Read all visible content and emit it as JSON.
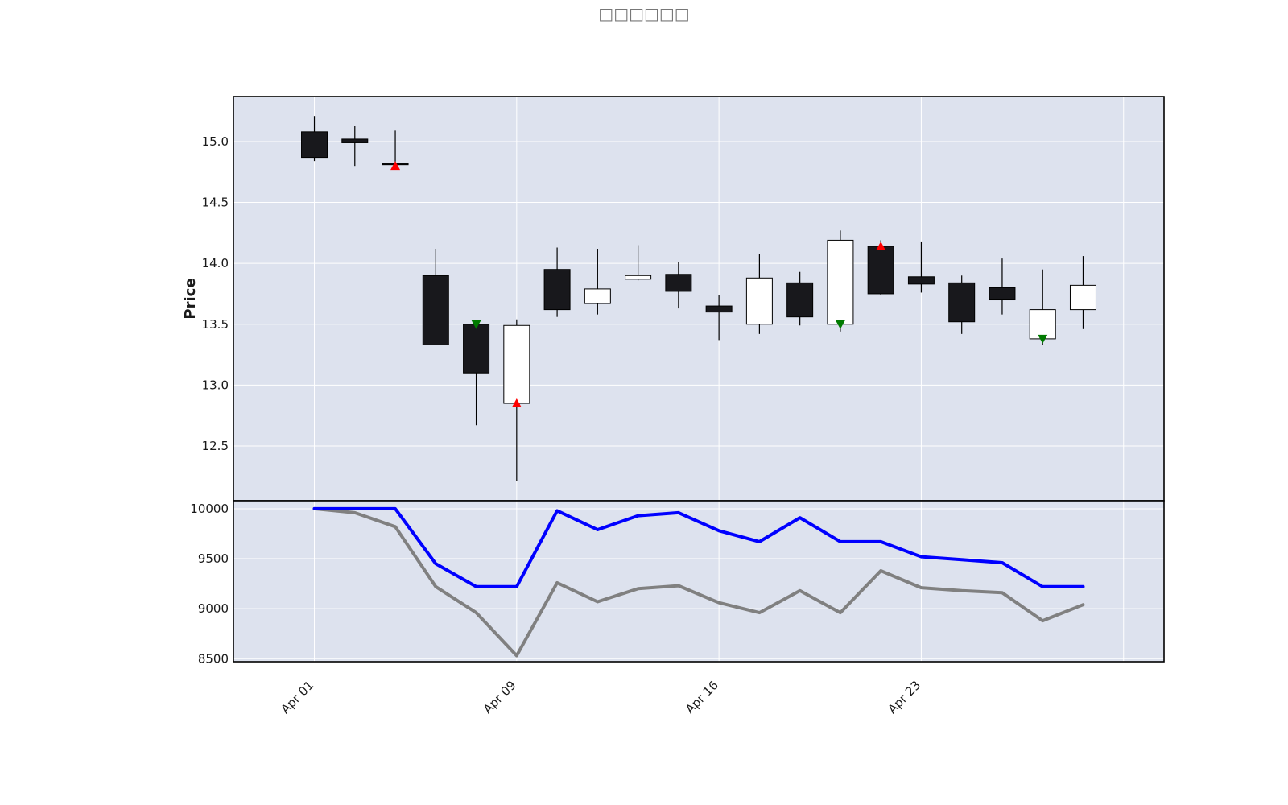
{
  "chart_data": {
    "type": "candlestick",
    "title": "□□□□□□",
    "colors": {
      "panel_bg": "#dde2ee",
      "grid": "#ffffff",
      "up_fill": "#ffffff",
      "down_fill": "#18181c",
      "candle_edge": "#000000",
      "buy_marker": "#ff0000",
      "sell_marker": "#007a00",
      "strategy_line": "#0000ff",
      "benchmark_line": "#808080"
    },
    "x_tick_labels": [
      {
        "index": 0,
        "label": "Apr 01"
      },
      {
        "index": 5,
        "label": "Apr 09"
      },
      {
        "index": 10,
        "label": "Apr 16"
      },
      {
        "index": 15,
        "label": "Apr 23"
      }
    ],
    "x_range": [
      -2,
      21
    ],
    "price_panel": {
      "ylabel": "Price",
      "ylim": [
        12.05,
        15.37
      ],
      "yticks": [
        "12.5",
        "13.0",
        "13.5",
        "14.0",
        "14.5",
        "15.0"
      ],
      "ytick_values": [
        12.5,
        13.0,
        13.5,
        14.0,
        14.5,
        15.0
      ],
      "candles": [
        {
          "o": 15.08,
          "h": 15.21,
          "l": 14.84,
          "c": 14.87
        },
        {
          "o": 15.02,
          "h": 15.13,
          "l": 14.8,
          "c": 14.99
        },
        {
          "o": 14.82,
          "h": 15.09,
          "l": 14.8,
          "c": 14.81
        },
        {
          "o": 13.9,
          "h": 14.12,
          "l": 13.33,
          "c": 13.33
        },
        {
          "o": 13.5,
          "h": 13.52,
          "l": 12.67,
          "c": 13.1
        },
        {
          "o": 12.85,
          "h": 13.54,
          "l": 12.21,
          "c": 13.49
        },
        {
          "o": 13.95,
          "h": 14.13,
          "l": 13.56,
          "c": 13.62
        },
        {
          "o": 13.67,
          "h": 14.12,
          "l": 13.58,
          "c": 13.79
        },
        {
          "o": 13.87,
          "h": 14.15,
          "l": 13.86,
          "c": 13.9
        },
        {
          "o": 13.91,
          "h": 14.01,
          "l": 13.63,
          "c": 13.77
        },
        {
          "o": 13.65,
          "h": 13.74,
          "l": 13.37,
          "c": 13.6
        },
        {
          "o": 13.5,
          "h": 14.08,
          "l": 13.42,
          "c": 13.88
        },
        {
          "o": 13.84,
          "h": 13.93,
          "l": 13.49,
          "c": 13.56
        },
        {
          "o": 13.5,
          "h": 14.27,
          "l": 13.44,
          "c": 14.19
        },
        {
          "o": 14.14,
          "h": 14.19,
          "l": 13.74,
          "c": 13.75
        },
        {
          "o": 13.89,
          "h": 14.18,
          "l": 13.76,
          "c": 13.83
        },
        {
          "o": 13.84,
          "h": 13.9,
          "l": 13.42,
          "c": 13.52
        },
        {
          "o": 13.8,
          "h": 14.04,
          "l": 13.58,
          "c": 13.7
        },
        {
          "o": 13.38,
          "h": 13.95,
          "l": 13.33,
          "c": 13.62
        },
        {
          "o": 13.62,
          "h": 14.06,
          "l": 13.46,
          "c": 13.82
        }
      ],
      "buy_markers": [
        {
          "index": 2,
          "price": 14.8
        },
        {
          "index": 5,
          "price": 12.85
        },
        {
          "index": 14,
          "price": 14.14
        }
      ],
      "sell_markers": [
        {
          "index": 4,
          "price": 13.5
        },
        {
          "index": 13,
          "price": 13.5
        },
        {
          "index": 18,
          "price": 13.38
        }
      ]
    },
    "equity_panel": {
      "ylim": [
        8470,
        10080
      ],
      "yticks": [
        "8500",
        "9000",
        "9500",
        "10000"
      ],
      "ytick_values": [
        8500,
        9000,
        9500,
        10000
      ],
      "series": [
        {
          "key": "strategy",
          "values": [
            10000,
            10000,
            10000,
            9450,
            9220,
            9220,
            9980,
            9790,
            9930,
            9960,
            9780,
            9670,
            9910,
            9670,
            9670,
            9520,
            9490,
            9460,
            9220,
            9220
          ]
        },
        {
          "key": "benchmark",
          "values": [
            10000,
            9960,
            9820,
            9220,
            8960,
            8530,
            9260,
            9070,
            9200,
            9230,
            9060,
            8960,
            9180,
            8960,
            9380,
            9210,
            9180,
            9160,
            8880,
            9040
          ]
        }
      ]
    }
  }
}
